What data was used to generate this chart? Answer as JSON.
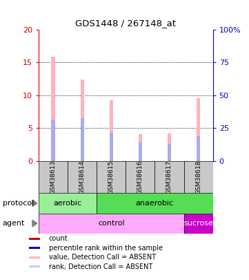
{
  "title": "GDS1448 / 267148_at",
  "samples": [
    "GSM38613",
    "GSM38614",
    "GSM38615",
    "GSM38616",
    "GSM38617",
    "GSM38618"
  ],
  "value_bars": [
    15.8,
    12.4,
    9.2,
    4.1,
    4.2,
    9.5
  ],
  "rank_bars": [
    6.3,
    6.5,
    4.3,
    2.8,
    2.6,
    3.8
  ],
  "ylim_left": [
    0,
    20
  ],
  "ylim_right": [
    0,
    100
  ],
  "yticks_left": [
    0,
    5,
    10,
    15,
    20
  ],
  "yticks_right": [
    0,
    25,
    50,
    75,
    100
  ],
  "color_value": "#ffb3ba",
  "color_rank": "#aaaaee",
  "color_count_legend": "#cc0000",
  "color_percentile_legend": "#0000cc",
  "protocol_aerobic_color": "#99ee99",
  "protocol_anaerobic_color": "#55dd55",
  "agent_control_color": "#ffaaff",
  "agent_sucrose_color": "#cc00cc",
  "bg_color": "#ffffff",
  "bar_width": 0.12,
  "ytick_left_color": "#cc0000",
  "ytick_right_color": "#0000cc",
  "grid_color": "#000000",
  "label_bg_color": "#c8c8c8"
}
